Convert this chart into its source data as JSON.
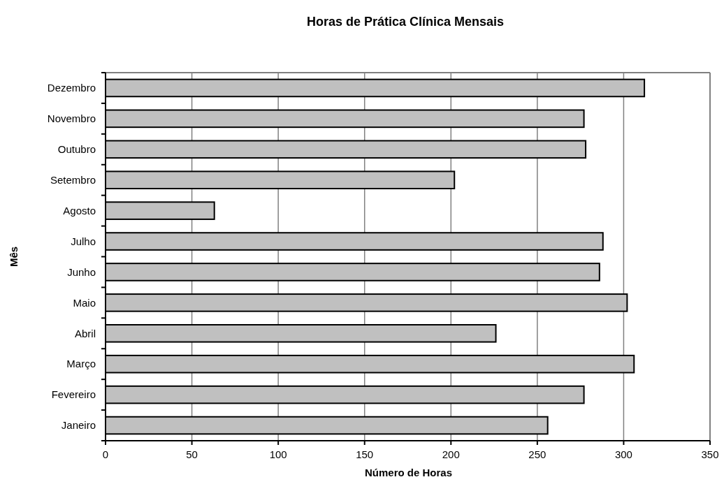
{
  "chart_data": {
    "type": "bar",
    "orientation": "horizontal",
    "title": "Horas de Prática Clínica Mensais",
    "xlabel": "Número de Horas",
    "ylabel": "Mês",
    "categories": [
      "Dezembro",
      "Novembro",
      "Outubro",
      "Setembro",
      "Agosto",
      "Julho",
      "Junho",
      "Maio",
      "Abril",
      "Março",
      "Fevereiro",
      "Janeiro"
    ],
    "values": [
      312,
      277,
      278,
      202,
      63,
      288,
      286,
      302,
      226,
      306,
      277,
      256
    ],
    "color": "#c0c0c0",
    "xlim": [
      0,
      350
    ],
    "xticks": [
      0,
      50,
      100,
      150,
      200,
      250,
      300,
      350
    ],
    "grid": "x"
  }
}
